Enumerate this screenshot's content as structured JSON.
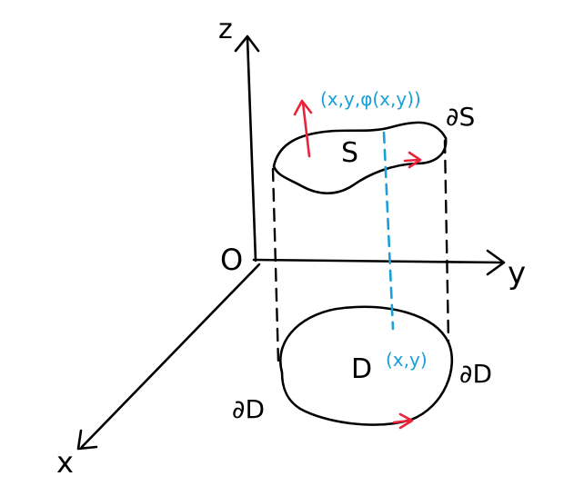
{
  "colors": {
    "ink": "#000000",
    "blue": "#1a9fd6",
    "red": "#e8233a",
    "background": "#ffffff"
  },
  "axes": {
    "x_label": "x",
    "y_label": "y",
    "z_label": "z",
    "origin_label": "O"
  },
  "surface": {
    "label": "S",
    "boundary_label": "∂S",
    "point_label": "(x,y,φ(x,y))"
  },
  "region": {
    "label": "D",
    "boundary_label_right": "∂D",
    "boundary_label_left": "∂D",
    "point_label": "(x,y)"
  }
}
